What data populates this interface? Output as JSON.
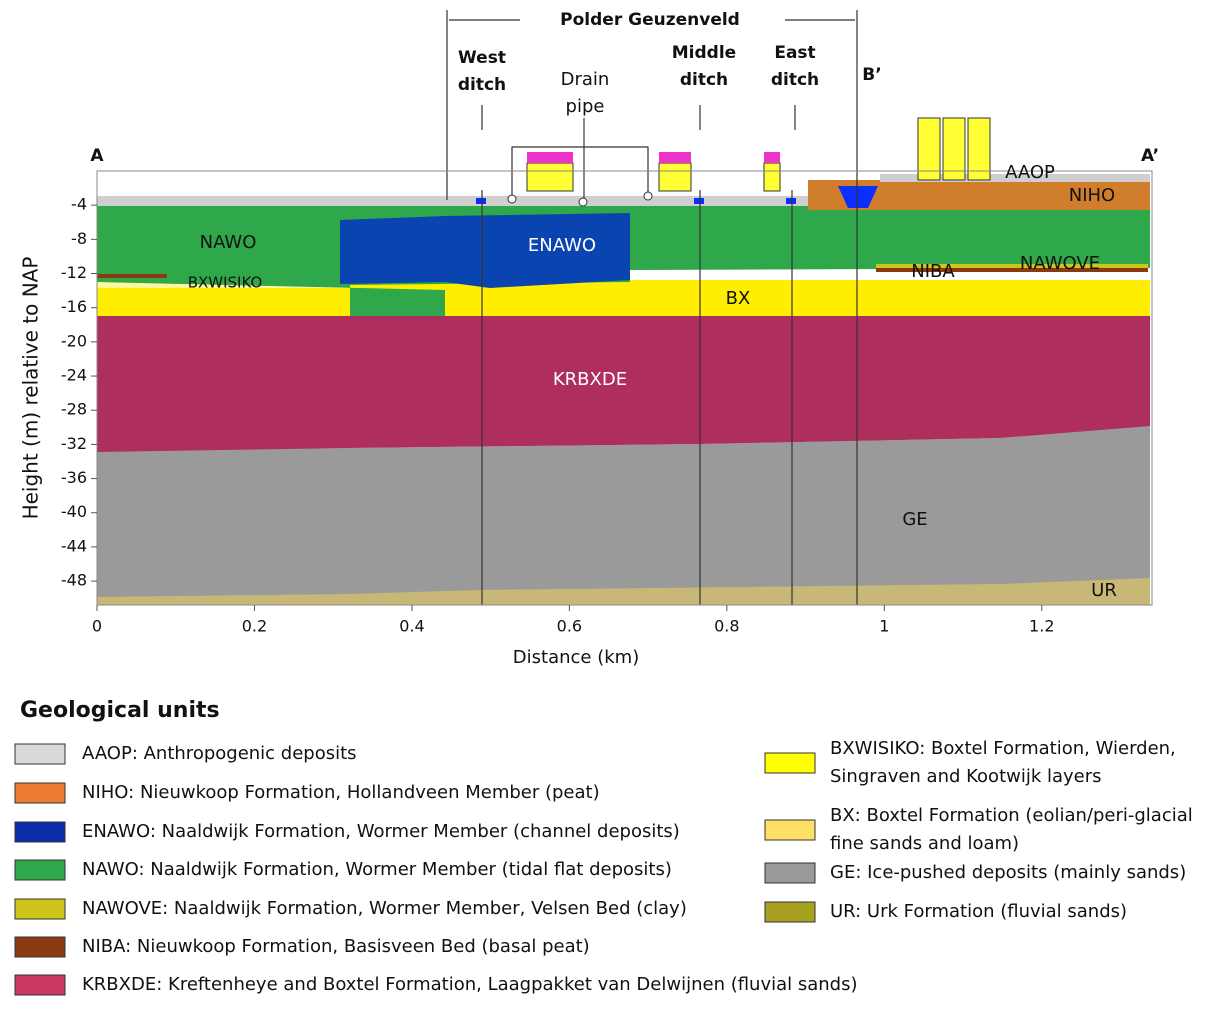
{
  "title": "Polder Geuzenveld",
  "section_labels": {
    "start": "A",
    "end": "A’",
    "cross": "B’"
  },
  "annotations": [
    {
      "lines": [
        "West",
        "ditch"
      ]
    },
    {
      "lines": [
        "Drain",
        "pipe"
      ]
    },
    {
      "lines": [
        "Middle",
        "ditch"
      ]
    },
    {
      "lines": [
        "East",
        "ditch"
      ]
    }
  ],
  "x_axis": {
    "label": "Distance (km)",
    "lim": [
      0,
      1.34
    ],
    "ticks": [
      0,
      0.2,
      0.4,
      0.6,
      0.8,
      1,
      1.2
    ]
  },
  "y_axis": {
    "label": "Height (m) relative to NAP",
    "lim": [
      -50.8,
      0
    ],
    "ticks": [
      -4,
      -8,
      -12,
      -16,
      -20,
      -24,
      -28,
      -32,
      -36,
      -40,
      -44,
      -48
    ]
  },
  "unit_labels": [
    "NAWO",
    "ENAWO",
    "BXWISIKO",
    "BX",
    "KRBXDE",
    "GE",
    "UR",
    "AAOP",
    "NIHO",
    "NIBA",
    "NAWOVE"
  ],
  "legend": {
    "title": "Geological units",
    "items": [
      {
        "text": [
          "AAOP: Anthropogenic deposits"
        ],
        "color": "#d9d9d9"
      },
      {
        "text": [
          "NIHO: Nieuwkoop Formation, Hollandveen Member (peat)"
        ],
        "color": "#ed7d31"
      },
      {
        "text": [
          "ENAWO: Naaldwijk Formation, Wormer Member (channel deposits)"
        ],
        "color": "#0a2fa8"
      },
      {
        "text": [
          "NAWO: Naaldwijk Formation, Wormer Member (tidal flat deposits)"
        ],
        "color": "#2ea84a"
      },
      {
        "text": [
          "NAWOVE: Naaldwijk Formation, Wormer Member, Velsen Bed (clay)"
        ],
        "color": "#cfc41a"
      },
      {
        "text": [
          "NIBA: Nieuwkoop Formation, Basisveen Bed (basal peat)"
        ],
        "color": "#8b3a10"
      },
      {
        "text": [
          "KRBXDE: Kreftenheye and  Boxtel Formation, Laagpakket van Delwijnen (fluvial sands)"
        ],
        "color": "#c8385f"
      },
      {
        "text": [
          "BXWISIKO: Boxtel Formation, Wierden,",
          "Singraven and Kootwijk layers"
        ],
        "color": "#ffff00"
      },
      {
        "text": [
          "BX: Boxtel Formation (eolian/peri-glacial",
          "fine sands and loam)"
        ],
        "color": "#ffe066"
      },
      {
        "text": [
          "GE: Ice-pushed deposits (mainly sands)"
        ],
        "color": "#999999"
      },
      {
        "text": [
          "UR: Urk Formation (fluvial sands)"
        ],
        "color": "#a8a020"
      }
    ]
  }
}
